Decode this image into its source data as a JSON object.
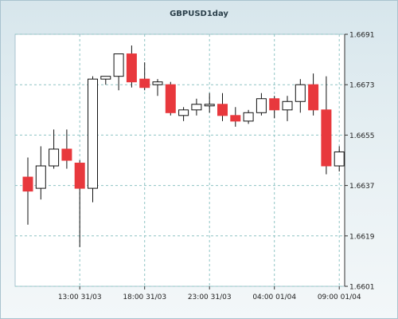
{
  "chart_data": {
    "type": "candlestick",
    "title": "GBPUSD1day",
    "ylim": [
      1.6601,
      1.6691
    ],
    "y_ticks": [
      "1.6691",
      "1.6673",
      "1.6655",
      "1.6637",
      "1.6619",
      "1.6601"
    ],
    "x_ticks": [
      {
        "label": "13:00 31/03",
        "index": 4
      },
      {
        "label": "18:00 31/03",
        "index": 9
      },
      {
        "label": "23:00 31/03",
        "index": 14
      },
      {
        "label": "04:00 01/04",
        "index": 19
      },
      {
        "label": "09:00 01/04",
        "index": 24
      }
    ],
    "colors": {
      "up": "#ffffff",
      "down": "#e8383d",
      "outline": "#111111",
      "grid": "#8fc4c4"
    },
    "candles": [
      {
        "o": 1.664,
        "h": 1.6647,
        "l": 1.6623,
        "c": 1.6635
      },
      {
        "o": 1.6636,
        "h": 1.6651,
        "l": 1.6632,
        "c": 1.6644
      },
      {
        "o": 1.6644,
        "h": 1.6657,
        "l": 1.6643,
        "c": 1.665
      },
      {
        "o": 1.665,
        "h": 1.6657,
        "l": 1.6643,
        "c": 1.6646
      },
      {
        "o": 1.6645,
        "h": 1.6646,
        "l": 1.6615,
        "c": 1.6636
      },
      {
        "o": 1.6636,
        "h": 1.6676,
        "l": 1.6631,
        "c": 1.6675
      },
      {
        "o": 1.6675,
        "h": 1.6676,
        "l": 1.6673,
        "c": 1.6676
      },
      {
        "o": 1.6676,
        "h": 1.6684,
        "l": 1.6671,
        "c": 1.6684
      },
      {
        "o": 1.6684,
        "h": 1.6687,
        "l": 1.6672,
        "c": 1.6674
      },
      {
        "o": 1.6675,
        "h": 1.6681,
        "l": 1.6671,
        "c": 1.6672
      },
      {
        "o": 1.6673,
        "h": 1.6675,
        "l": 1.6669,
        "c": 1.6674
      },
      {
        "o": 1.6673,
        "h": 1.6674,
        "l": 1.6662,
        "c": 1.6663
      },
      {
        "o": 1.6662,
        "h": 1.6665,
        "l": 1.666,
        "c": 1.6664
      },
      {
        "o": 1.6664,
        "h": 1.6668,
        "l": 1.6662,
        "c": 1.6666
      },
      {
        "o": 1.6666,
        "h": 1.667,
        "l": 1.6663,
        "c": 1.6666
      },
      {
        "o": 1.6666,
        "h": 1.667,
        "l": 1.666,
        "c": 1.6662
      },
      {
        "o": 1.6662,
        "h": 1.6665,
        "l": 1.6658,
        "c": 1.666
      },
      {
        "o": 1.666,
        "h": 1.6664,
        "l": 1.6659,
        "c": 1.6663
      },
      {
        "o": 1.6663,
        "h": 1.667,
        "l": 1.6662,
        "c": 1.6668
      },
      {
        "o": 1.6668,
        "h": 1.6669,
        "l": 1.6661,
        "c": 1.6664
      },
      {
        "o": 1.6664,
        "h": 1.6669,
        "l": 1.666,
        "c": 1.6667
      },
      {
        "o": 1.6667,
        "h": 1.6675,
        "l": 1.6663,
        "c": 1.6673
      },
      {
        "o": 1.6673,
        "h": 1.6677,
        "l": 1.6662,
        "c": 1.6664
      },
      {
        "o": 1.6664,
        "h": 1.6676,
        "l": 1.6641,
        "c": 1.6644
      },
      {
        "o": 1.6644,
        "h": 1.6651,
        "l": 1.6642,
        "c": 1.6649
      }
    ]
  }
}
